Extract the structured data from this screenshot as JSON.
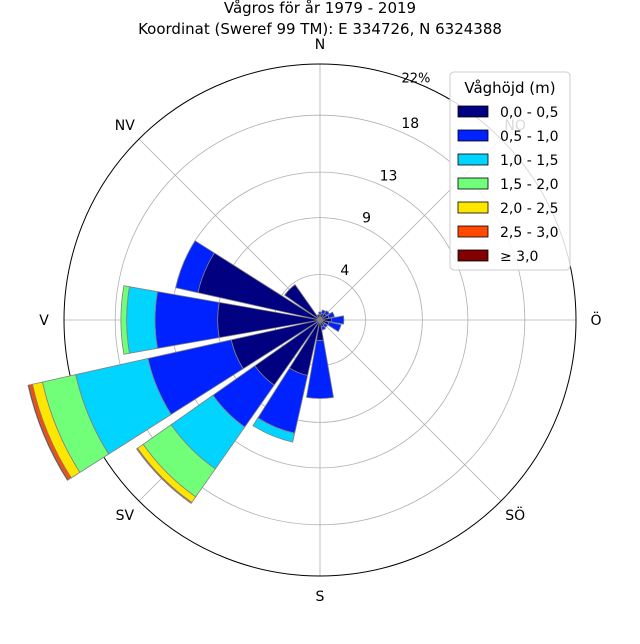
{
  "chart_data": {
    "type": "windrose",
    "title": "Vågros för år 1979 - 2019",
    "subtitle": "Koordinat (Sweref 99 TM): E 334726, N 6324388",
    "radial_ticks": [
      4,
      9,
      13,
      18
    ],
    "radial_max_label": "22%",
    "radial_max": 22.5,
    "direction_labels": [
      {
        "label": "N",
        "angle": 0
      },
      {
        "label": "NO",
        "angle": 45
      },
      {
        "label": "Ö",
        "angle": 90
      },
      {
        "label": "SÖ",
        "angle": 135
      },
      {
        "label": "S",
        "angle": 180
      },
      {
        "label": "SV",
        "angle": 225
      },
      {
        "label": "V",
        "angle": 270
      },
      {
        "label": "NV",
        "angle": 315
      }
    ],
    "legend": {
      "title": "Våghöjd (m)",
      "placement": "top-right",
      "entries": [
        {
          "label": "0,0 - 0,5",
          "color": "#000080"
        },
        {
          "label": "0,5 - 1,0",
          "color": "#0022ff"
        },
        {
          "label": "1,0 - 1,5",
          "color": "#00d4ff"
        },
        {
          "label": "1,5 - 2,0",
          "color": "#71ff7a"
        },
        {
          "label": "2,0 - 2,5",
          "color": "#ffe600"
        },
        {
          "label": "2,5 - 3,0",
          "color": "#ff4a00"
        },
        {
          "label": "≥ 3,0",
          "color": "#800000"
        }
      ]
    },
    "sector_width_deg": 22.5,
    "directions_deg": [
      0,
      22.5,
      45,
      67.5,
      90,
      112.5,
      135,
      157.5,
      180,
      202.5,
      225,
      247.5,
      270,
      292.5,
      315,
      337.5
    ],
    "series": [
      {
        "name": "0,0 - 0,5",
        "values": [
          0.5,
          0.6,
          0.7,
          0.8,
          1.0,
          0.8,
          0.5,
          0.6,
          1.8,
          5.0,
          7.0,
          8.0,
          9.0,
          11.0,
          3.8,
          0.5
        ]
      },
      {
        "name": "0,5 - 1,0",
        "values": [
          0.2,
          0.3,
          0.3,
          0.5,
          1.1,
          1.1,
          0.3,
          0.3,
          5.1,
          5.2,
          4.5,
          7.5,
          5.5,
          2.0,
          0.0,
          0.0
        ]
      },
      {
        "name": "1,0 - 1,5",
        "values": [
          0.0,
          0.0,
          0.0,
          0.0,
          0.0,
          0.0,
          0.0,
          0.0,
          0.0,
          0.8,
          4.5,
          6.5,
          2.5,
          0.0,
          0.0,
          0.0
        ]
      },
      {
        "name": "1,5 - 2,0",
        "values": [
          0.0,
          0.0,
          0.0,
          0.0,
          0.0,
          0.0,
          0.0,
          0.0,
          0.0,
          0.0,
          3.0,
          3.0,
          0.5,
          0.0,
          0.0,
          0.0
        ]
      },
      {
        "name": "2,0 - 2,5",
        "values": [
          0.0,
          0.0,
          0.0,
          0.0,
          0.0,
          0.0,
          0.0,
          0.0,
          0.0,
          0.0,
          0.6,
          0.9,
          0.0,
          0.0,
          0.0,
          0.0
        ]
      },
      {
        "name": "2,5 - 3,0",
        "values": [
          0.0,
          0.0,
          0.0,
          0.0,
          0.0,
          0.0,
          0.0,
          0.0,
          0.0,
          0.0,
          0.1,
          0.3,
          0.0,
          0.0,
          0.0,
          0.0
        ]
      },
      {
        "name": "≥ 3,0",
        "values": [
          0.0,
          0.0,
          0.0,
          0.0,
          0.0,
          0.0,
          0.0,
          0.0,
          0.0,
          0.0,
          0.0,
          0.1,
          0.0,
          0.0,
          0.0,
          0.0
        ]
      }
    ]
  }
}
